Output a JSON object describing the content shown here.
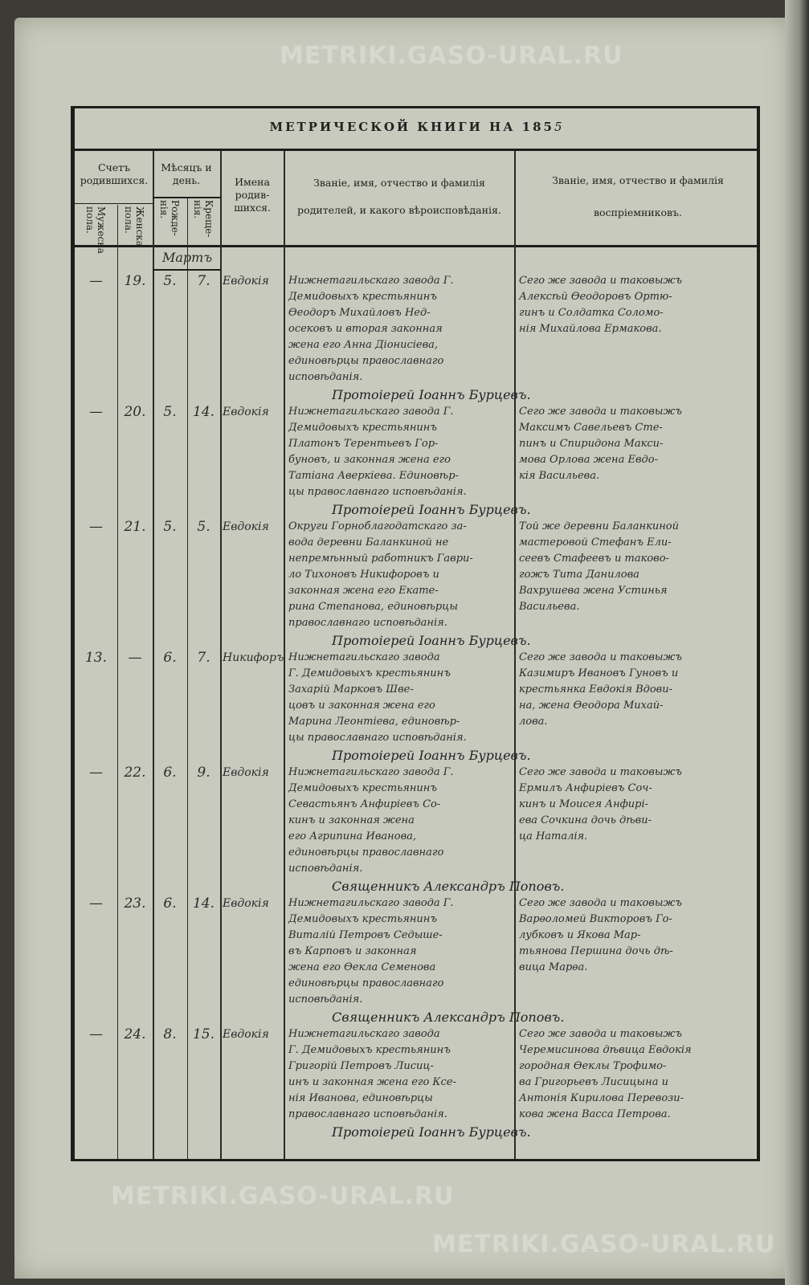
{
  "watermark": "METRIKI.GASO-URAL.RU",
  "header": {
    "title": "МЕТРИЧЕСКОЙ КНИГИ НА 185",
    "year_suffix": "5",
    "col_count": "Счетъ родившихся.",
    "col_male": "Мужеска пола.",
    "col_female": "Женска пола.",
    "col_month": "Мѣсяцъ и день.",
    "col_birth": "Рожде- нія.",
    "col_baptism": "Креще- нія.",
    "col_names": "Имена родив- шихся.",
    "col_parents_1": "Званіе, имя, отчество и фамилія",
    "col_parents_2": "родителей, и какого вѣроисповѣданія.",
    "col_godparents_1": "Званіе, имя, отчество и фамилія",
    "col_godparents_2": "воспріемниковъ."
  },
  "month": "Мартъ",
  "entries": [
    {
      "male": "—",
      "female": "19.",
      "birth": "5.",
      "baptism": "7.",
      "name": "Евдокія",
      "parents": "Нижнетагильскаго завода Г.\nДемидовыхъ крестьянинъ\nѲеодоръ Михайловъ Нед-\nосековъ и вторая законная\nжена его Анна Діонисіева,\nединовѣрцы православнаго\nисповѣданія.",
      "godparents": "Сего же завода и таковыжъ\nАлексѣй Ѳеодоровъ Ортю-\nгинъ и Солдатка Соломо-\nнія Михайлова Ермакова.",
      "signature": "Протоіерей Іоаннъ Бурцевъ."
    },
    {
      "male": "—",
      "female": "20.",
      "birth": "5.",
      "baptism": "14.",
      "name": "Евдокія",
      "parents": "Нижнетагильскаго завода Г.\nДемидовыхъ крестьянинъ\nПлатонъ Терентьевъ Гор-\nбуновъ, и законная жена его\nТатіана Аверкіева. Единовѣр-\nцы православнаго исповѣданія.",
      "godparents": "Сего же завода и таковыжъ\nМаксимъ Савельевъ Сте-\nпинъ и Спиридона Макси-\nмова Орлова жена Евдо-\nкія Васильева.",
      "signature": "Протоіерей Іоаннъ Бурцевъ."
    },
    {
      "male": "—",
      "female": "21.",
      "birth": "5.",
      "baptism": "5.",
      "name": "Евдокія",
      "parents": "Округи Горноблагодатскаго за-\nвода деревни Баланкиной не\nнепремѣнный работникъ Гаври-\nло Тихоновъ Никифоровъ и\nзаконная жена его Екате-\nрина Степанова, единовѣрцы\nправославнаго исповѣданія.",
      "godparents": "Той же деревни Баланкиной\nмастеровой Стефанъ Ели-\nсеевъ Стафеевъ и таково-\nгожъ Тита Данилова\nВахрушева жена Устинья\nВасильева.",
      "signature": "Протоіерей Іоаннъ Бурцевъ."
    },
    {
      "male": "13.",
      "female": "—",
      "birth": "6.",
      "baptism": "7.",
      "name": "Никифоръ",
      "parents": "Нижнетагильскаго завода\nГ. Демидовыхъ крестьянинъ\nЗахарій Марковъ Шве-\nцовъ и законная жена его\nМарина Леонтіева, единовѣр-\nцы православнаго исповѣданія.",
      "godparents": "Сего же завода и таковыжъ\nКазимиръ Ивановъ Гуновъ и\nкрестьянка Евдокія Вдови-\nна, жена Ѳеодора Михай-\nлова.",
      "signature": "Протоіерей Іоаннъ Бурцевъ."
    },
    {
      "male": "—",
      "female": "22.",
      "birth": "6.",
      "baptism": "9.",
      "name": "Евдокія",
      "parents": "Нижнетагильскаго завода Г.\nДемидовыхъ крестьянинъ\nСевастьянъ Анфиріевъ Со-\nкинъ и законная жена\nего Агрипина Иванова,\nединовѣрцы православнаго\nисповѣданія.",
      "godparents": "Сего же завода и таковыжъ\nЕрмилъ Анфиріевъ Соч-\nкинъ и Моисея Анфирі-\nева Сочкина дочь дѣви-\nца Наталія.",
      "signature": "Священникъ Александръ Поповъ."
    },
    {
      "male": "—",
      "female": "23.",
      "birth": "6.",
      "baptism": "14.",
      "name": "Евдокія",
      "parents": "Нижнетагильскаго завода Г.\nДемидовыхъ крестьянинъ\nВиталій Петровъ Седыше-\nвъ Карповъ и законная\nжена его Ѳекла Семенова\nединовѣрцы православнаго\nисповѣданія.",
      "godparents": "Сего же завода и таковыжъ\nВарѳоломей Викторовъ Го-\nлубковъ и Якова Мар-\nтьянова Першина дочь дѣ-\nвица Марѳа.",
      "signature": "Священникъ Александръ Поповъ."
    },
    {
      "male": "—",
      "female": "24.",
      "birth": "8.",
      "baptism": "15.",
      "name": "Евдокія",
      "parents": "Нижнетагильскаго завода\nГ. Демидовыхъ крестьянинъ\nГригорій Петровъ Лисиц-\nинъ и законная жена его Ксе-\nнія Иванова, единовѣрцы\nправославнаго исповѣданія.",
      "godparents": "Сего же завода и таковыжъ\nЧеремисинова дѣвица Евдокія\nгородная Ѳеклы Трофимо-\nва Григорьевъ Лисицына и\nАнтонія Кирилова Перевози-\nкова жена Васса Петрова.",
      "signature": "Протоіерей Іоаннъ Бурцевъ."
    }
  ]
}
